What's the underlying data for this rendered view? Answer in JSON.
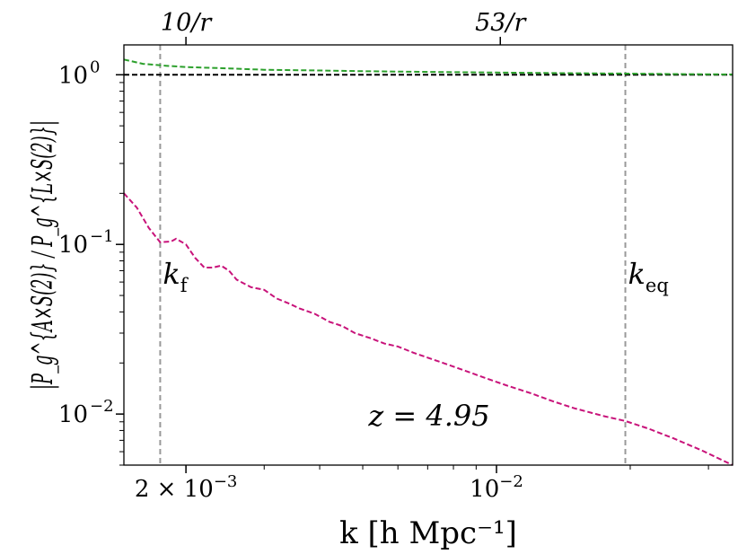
{
  "chart_data": {
    "type": "line",
    "xlabel": "k [h Mpc⁻¹]",
    "ylabel": "|P_g^{A×S(2)} / P_g^{L×S(2)}|",
    "x_scale": "log",
    "y_scale": "log",
    "xlim": [
      0.00145,
      0.034
    ],
    "ylim": [
      0.005,
      1.5
    ],
    "x_ticks": [
      {
        "value": 0.002,
        "label": "2 × 10",
        "sup": "−3"
      },
      {
        "value": 0.01,
        "label": "10",
        "sup": "−2"
      }
    ],
    "y_ticks": [
      {
        "value": 1,
        "label": "10",
        "sup": "0"
      },
      {
        "value": 0.1,
        "label": "10",
        "sup": "−1"
      },
      {
        "value": 0.01,
        "label": "10",
        "sup": "−2"
      }
    ],
    "top_ticks": [
      {
        "value": 0.002,
        "label": "10/r"
      },
      {
        "value": 0.0102,
        "label": "53/r"
      }
    ],
    "vlines": [
      {
        "x": 0.00175,
        "label": "k",
        "sub": "f",
        "color": "#999999"
      },
      {
        "x": 0.0195,
        "label": "k",
        "sub": "eq",
        "color": "#999999"
      }
    ],
    "hline": {
      "y": 1.0,
      "color": "#000000"
    },
    "annotation": "z = 4.95",
    "annotation_color": "#8c8c8c",
    "series": [
      {
        "color": "#2ca02c",
        "style": "dashed",
        "x": [
          0.00145,
          0.0016,
          0.0018,
          0.002,
          0.0025,
          0.003,
          0.004,
          0.005,
          0.007,
          0.01,
          0.015,
          0.02,
          0.025,
          0.034
        ],
        "y": [
          1.23,
          1.16,
          1.13,
          1.11,
          1.09,
          1.07,
          1.06,
          1.05,
          1.04,
          1.03,
          1.02,
          1.015,
          1.01,
          1.005
        ]
      },
      {
        "color": "#c8137a",
        "style": "dashed",
        "x": [
          0.00145,
          0.00155,
          0.00165,
          0.00175,
          0.00185,
          0.0019,
          0.002,
          0.0021,
          0.0022,
          0.0023,
          0.0024,
          0.0025,
          0.0026,
          0.0028,
          0.003,
          0.0032,
          0.0034,
          0.0036,
          0.0039,
          0.0042,
          0.0045,
          0.0048,
          0.0052,
          0.0056,
          0.006,
          0.0065,
          0.007,
          0.0078,
          0.0086,
          0.0095,
          0.0105,
          0.012,
          0.0135,
          0.015,
          0.0175,
          0.0195,
          0.022,
          0.025,
          0.029,
          0.034
        ],
        "y": [
          0.2,
          0.165,
          0.125,
          0.103,
          0.104,
          0.108,
          0.1,
          0.083,
          0.073,
          0.073,
          0.075,
          0.07,
          0.062,
          0.056,
          0.054,
          0.048,
          0.045,
          0.042,
          0.039,
          0.035,
          0.033,
          0.03,
          0.028,
          0.026,
          0.025,
          0.023,
          0.0215,
          0.0195,
          0.0178,
          0.0162,
          0.0148,
          0.0132,
          0.0118,
          0.0108,
          0.0097,
          0.0091,
          0.0082,
          0.0072,
          0.0061,
          0.005
        ]
      }
    ]
  }
}
